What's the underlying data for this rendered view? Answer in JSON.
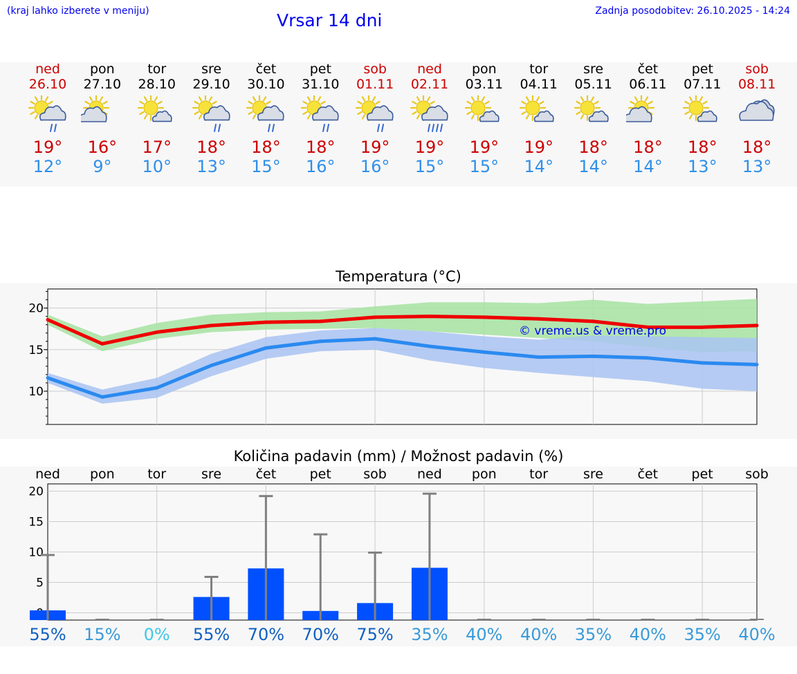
{
  "header": {
    "hint": "(kraj lahko izberete v meniju)",
    "title": "Vrsar 14 dni",
    "updated": "Zadnja posodobitev: 26.10.2025 - 14:24"
  },
  "days": [
    {
      "name": "ned",
      "date": "26.10",
      "weekend": true,
      "icon": "partly-sunny-light-rain-icon",
      "max": "19°",
      "min": "12°"
    },
    {
      "name": "pon",
      "date": "27.10",
      "weekend": false,
      "icon": "partly-cloudy-icon",
      "max": "16°",
      "min": "9°"
    },
    {
      "name": "tor",
      "date": "28.10",
      "weekend": false,
      "icon": "mostly-sunny-icon",
      "max": "17°",
      "min": "10°"
    },
    {
      "name": "sre",
      "date": "29.10",
      "weekend": false,
      "icon": "partly-sunny-light-rain-icon",
      "max": "18°",
      "min": "13°"
    },
    {
      "name": "čet",
      "date": "30.10",
      "weekend": false,
      "icon": "partly-sunny-light-rain-icon",
      "max": "18°",
      "min": "15°"
    },
    {
      "name": "pet",
      "date": "31.10",
      "weekend": false,
      "icon": "partly-sunny-light-rain-icon",
      "max": "18°",
      "min": "16°"
    },
    {
      "name": "sob",
      "date": "01.11",
      "weekend": true,
      "icon": "partly-sunny-light-rain-icon",
      "max": "19°",
      "min": "16°"
    },
    {
      "name": "ned",
      "date": "02.11",
      "weekend": true,
      "icon": "partly-sunny-rain-icon",
      "max": "19°",
      "min": "15°"
    },
    {
      "name": "pon",
      "date": "03.11",
      "weekend": false,
      "icon": "mostly-sunny-icon",
      "max": "19°",
      "min": "15°"
    },
    {
      "name": "tor",
      "date": "04.11",
      "weekend": false,
      "icon": "mostly-sunny-icon",
      "max": "19°",
      "min": "14°"
    },
    {
      "name": "sre",
      "date": "05.11",
      "weekend": false,
      "icon": "mostly-sunny-icon",
      "max": "18°",
      "min": "14°"
    },
    {
      "name": "čet",
      "date": "06.11",
      "weekend": false,
      "icon": "partly-cloudy-icon",
      "max": "18°",
      "min": "14°"
    },
    {
      "name": "pet",
      "date": "07.11",
      "weekend": false,
      "icon": "mostly-sunny-icon",
      "max": "18°",
      "min": "13°"
    },
    {
      "name": "sob",
      "date": "08.11",
      "weekend": true,
      "icon": "cloudy-icon",
      "max": "18°",
      "min": "13°"
    }
  ],
  "colors": {
    "weekend": "#cc0000",
    "max_line": "#ee0000",
    "min_line": "#2a8af0",
    "max_band": "#a6e3a1",
    "min_band": "#a9c3f2",
    "bar": "#0050ff",
    "whisker": "#808080",
    "watermark": "#0000ee"
  },
  "chart_data": [
    {
      "type": "line",
      "title": "Temperatura (°C)",
      "watermark": "© vreme.us & vreme.pro",
      "x": [
        0,
        1,
        2,
        3,
        4,
        5,
        6,
        7,
        8,
        9,
        10,
        11,
        12,
        13
      ],
      "ylim": [
        6,
        22.3
      ],
      "yticks": [
        "10",
        "15",
        "20"
      ],
      "grid": true,
      "series": [
        {
          "key": "max",
          "values": [
            18.6,
            15.7,
            17.1,
            17.9,
            18.3,
            18.4,
            18.9,
            19.0,
            18.9,
            18.7,
            18.4,
            17.7,
            17.7,
            17.9
          ],
          "band_low": [
            18.0,
            14.8,
            16.3,
            17.1,
            17.4,
            17.5,
            17.6,
            17.2,
            16.8,
            16.4,
            16.0,
            15.3,
            14.7,
            14.8
          ],
          "band_high": [
            19.2,
            16.6,
            18.2,
            19.2,
            19.5,
            19.6,
            20.2,
            20.7,
            20.7,
            20.6,
            21.0,
            20.5,
            20.8,
            21.1
          ]
        },
        {
          "key": "min",
          "values": [
            11.6,
            9.3,
            10.4,
            13.1,
            15.2,
            16.0,
            16.3,
            15.4,
            14.7,
            14.1,
            14.2,
            14.0,
            13.4,
            13.2
          ],
          "band_low": [
            11.0,
            8.5,
            9.2,
            11.8,
            13.9,
            14.8,
            15.0,
            13.7,
            12.8,
            12.2,
            11.7,
            11.2,
            10.3,
            10.0
          ],
          "band_high": [
            12.2,
            10.2,
            11.6,
            14.5,
            16.5,
            17.3,
            17.6,
            17.2,
            16.6,
            16.2,
            16.7,
            16.6,
            16.5,
            16.4
          ]
        }
      ]
    },
    {
      "type": "bar",
      "title": "Količina padavin (mm) / Možnost padavin (%)",
      "categories": [
        "ned",
        "pon",
        "tor",
        "sre",
        "čet",
        "pet",
        "sob",
        "ned",
        "pon",
        "tor",
        "sre",
        "čet",
        "pet",
        "sob"
      ],
      "values": [
        0.4,
        0,
        0,
        2.6,
        7.3,
        0.3,
        1.6,
        7.4,
        0,
        0,
        0,
        0,
        0,
        0
      ],
      "whiskers": [
        9.5,
        0,
        0,
        5.9,
        19.2,
        12.9,
        9.9,
        19.6,
        0,
        0,
        0,
        0,
        0,
        0
      ],
      "ylim": [
        -1.2,
        21.2
      ],
      "yticks": [
        "0",
        "5",
        "10",
        "15",
        "20"
      ],
      "grid": true,
      "chance": [
        "55%",
        "15%",
        "0%",
        "55%",
        "70%",
        "70%",
        "75%",
        "35%",
        "40%",
        "40%",
        "35%",
        "40%",
        "35%",
        "40%"
      ],
      "chance_values": [
        55,
        15,
        0,
        55,
        70,
        70,
        75,
        35,
        40,
        40,
        35,
        40,
        35,
        40
      ]
    }
  ]
}
